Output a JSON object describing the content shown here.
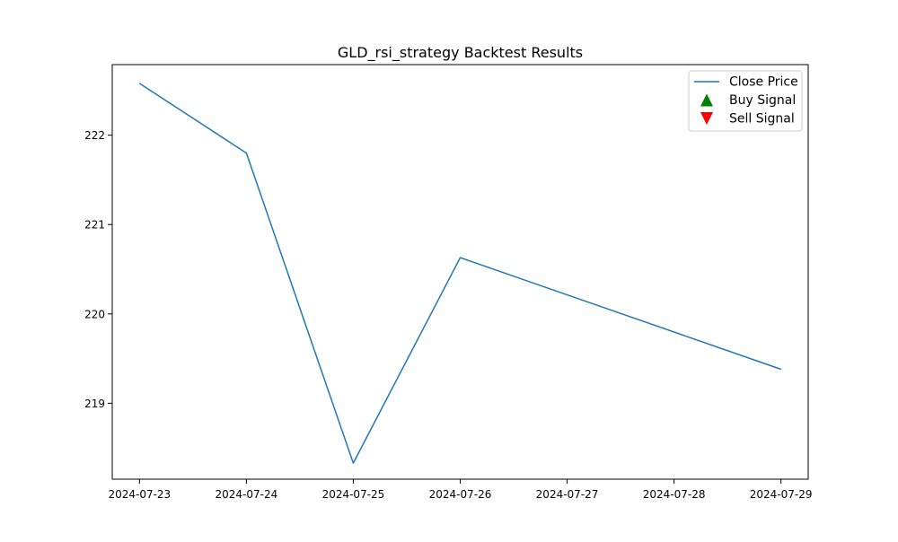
{
  "chart_data": {
    "type": "line",
    "title": "GLD_rsi_strategy Backtest Results",
    "xlabel": "",
    "ylabel": "",
    "x": [
      "2024-07-23",
      "2024-07-24",
      "2024-07-25",
      "2024-07-26",
      "2024-07-27",
      "2024-07-28",
      "2024-07-29"
    ],
    "x_ticks": [
      "2024-07-23",
      "2024-07-24",
      "2024-07-25",
      "2024-07-26",
      "2024-07-27",
      "2024-07-28",
      "2024-07-29"
    ],
    "series": [
      {
        "name": "Close Price",
        "color": "#1f77b4",
        "points": [
          {
            "x": "2024-07-23",
            "y": 222.58
          },
          {
            "x": "2024-07-24",
            "y": 221.8
          },
          {
            "x": "2024-07-25",
            "y": 218.33
          },
          {
            "x": "2024-07-26",
            "y": 220.63
          },
          {
            "x": "2024-07-29",
            "y": 219.38
          }
        ]
      }
    ],
    "buy_signals": [],
    "sell_signals": [],
    "xlim": [
      "2024-07-22T17:53",
      "2024-07-29T06:07"
    ],
    "ylim": [
      218.15,
      222.79
    ],
    "y_ticks": [
      219,
      220,
      221,
      222
    ],
    "grid": false,
    "legend": {
      "placement": "upper right",
      "entries": [
        {
          "label": "Close Price",
          "marker": "line",
          "color": "#1f77b4"
        },
        {
          "label": "Buy Signal",
          "marker": "triangle-up",
          "color": "#008000"
        },
        {
          "label": "Sell Signal",
          "marker": "triangle-down",
          "color": "#ff0000"
        }
      ]
    }
  }
}
